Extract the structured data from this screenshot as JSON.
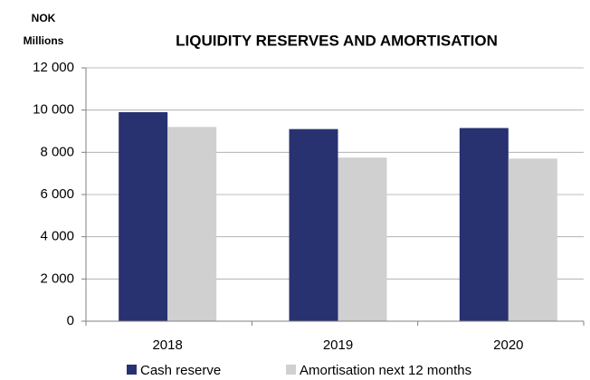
{
  "chart_data": {
    "type": "bar",
    "title": "LIQUIDITY RESERVES AND AMORTISATION",
    "ylabel": [
      "NOK",
      "Millions"
    ],
    "categories": [
      "2018",
      "2019",
      "2020"
    ],
    "series": [
      {
        "name": "Cash reserve",
        "color": "#283270",
        "values": [
          9900,
          9100,
          9150
        ]
      },
      {
        "name": "Amortisation next 12 months",
        "color": "#d0d0d0",
        "values": [
          9200,
          7750,
          7700
        ]
      }
    ],
    "ylim": [
      0,
      12000
    ],
    "yticks": [
      0,
      {
        "value": 2000,
        "label": "2 000"
      },
      {
        "value": 4000,
        "label": "4 000"
      },
      {
        "value": 6000,
        "label": "6 000"
      },
      {
        "value": 8000,
        "label": "8 000"
      },
      {
        "value": 10000,
        "label": "10 000"
      },
      {
        "value": 12000,
        "label": "12 000"
      }
    ],
    "grid": true,
    "legend": "bottom"
  }
}
